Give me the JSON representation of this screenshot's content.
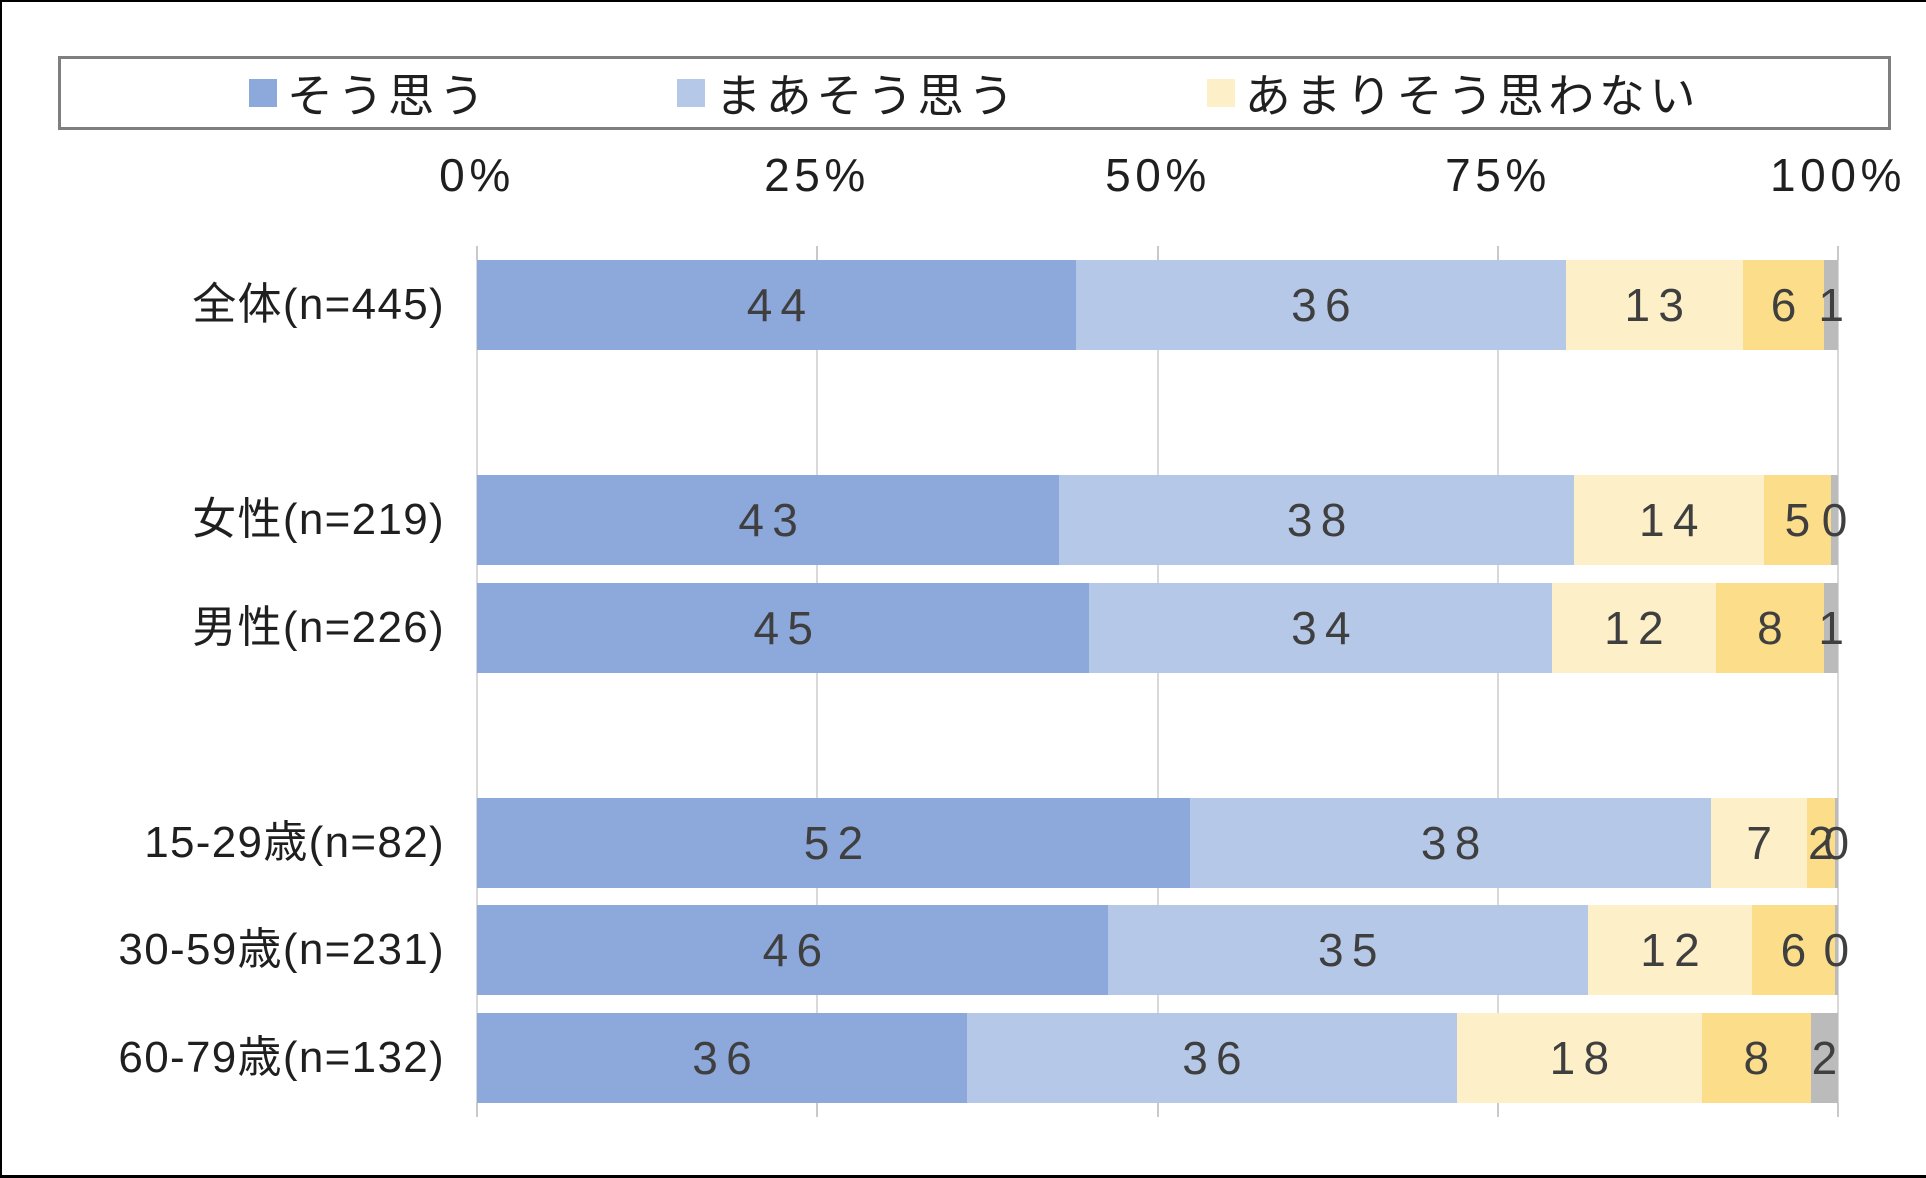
{
  "page": {
    "background": "#ffffff",
    "frame_color": "#000000"
  },
  "legend": {
    "border_color": "#7F7F7F",
    "items": [
      {
        "label": "そう思う",
        "color": "#8DA8DB"
      },
      {
        "label": "まあそう思う",
        "color": "#B6C8E8"
      },
      {
        "label": "あまりそう思わない",
        "color": "#FDF0C8"
      }
    ]
  },
  "chart_data": {
    "type": "bar",
    "orientation": "horizontal",
    "stacked": true,
    "unit": "%",
    "x_axis": {
      "tick_labels": [
        "0%",
        "25%",
        "50%",
        "75%",
        "100%"
      ],
      "min": 0,
      "max": 100,
      "gridlines": true
    },
    "categories": [
      "全体(n=445)",
      "女性(n=219)",
      "男性(n=226)",
      "15-29歳(n=82)",
      "30-59歳(n=231)",
      "60-79歳(n=132)"
    ],
    "series": [
      {
        "name": "そう思う",
        "color": "#8DA8DB",
        "values": [
          44,
          43,
          45,
          52,
          46,
          36
        ]
      },
      {
        "name": "まあそう思う",
        "color": "#B6C8E8",
        "values": [
          36,
          38,
          34,
          38,
          35,
          36
        ]
      },
      {
        "name": "あまりそう思わない",
        "color": "#FDF0C8",
        "values": [
          13,
          14,
          12,
          7,
          12,
          18
        ]
      },
      {
        "name": "",
        "color": "#FBDD8A",
        "values": [
          6,
          5,
          8,
          2,
          6,
          8
        ]
      },
      {
        "name": "",
        "color": "#BBBBBB",
        "values": [
          1,
          0,
          1,
          0,
          0,
          2
        ],
        "render_widths": [
          1,
          0.5,
          1,
          0.25,
          0.25,
          2
        ]
      }
    ],
    "data_label_color": "#3F3F3F",
    "gridline_color": "#D9D9D9",
    "legend_position": "top"
  }
}
